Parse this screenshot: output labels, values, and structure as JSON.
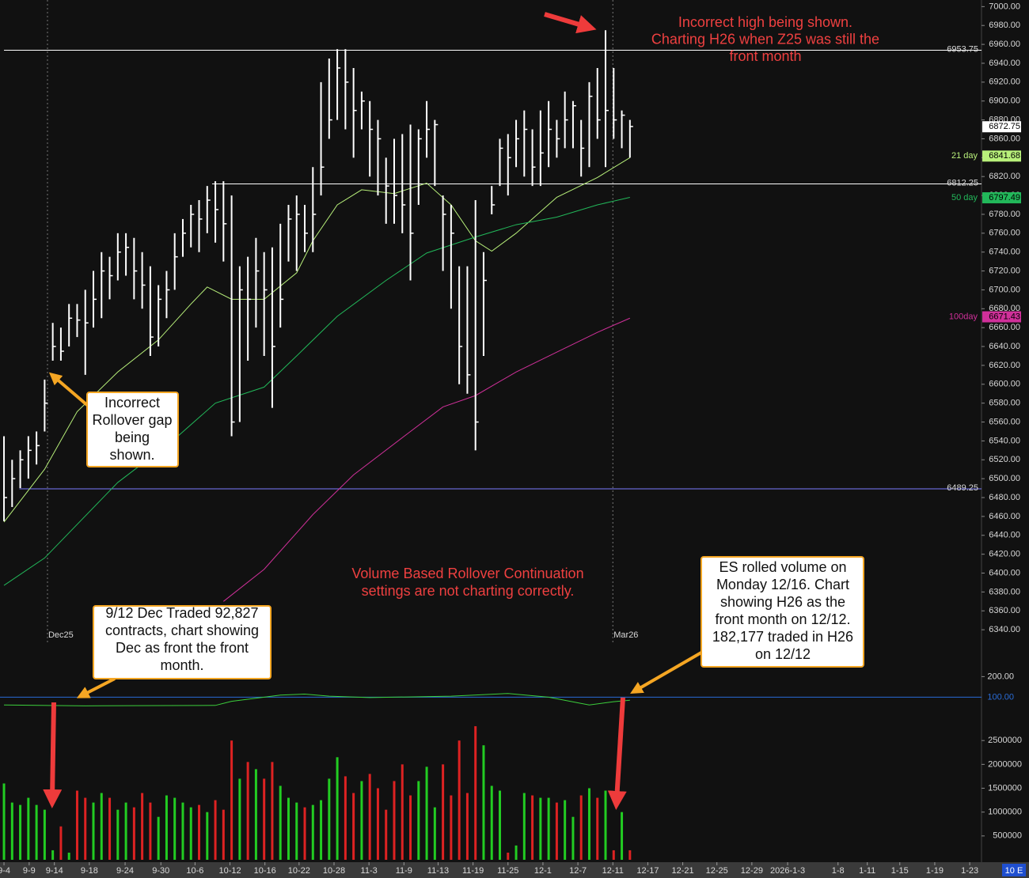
{
  "chart_data": {
    "type": "ohlc",
    "bar_color": "#ffffff",
    "high": [
      6545,
      6520,
      6530,
      6545,
      6550,
      6605,
      6665,
      6660,
      6685,
      6685,
      6700,
      6720,
      6740,
      6735,
      6760,
      6760,
      6755,
      6740,
      6725,
      6705,
      6720,
      6760,
      6775,
      6790,
      6795,
      6810,
      6815,
      6815,
      6800,
      6725,
      6735,
      6755,
      6740,
      6745,
      6770,
      6790,
      6800,
      6790,
      6830,
      6920,
      6945,
      6955,
      6955,
      6935,
      6910,
      6900,
      6880,
      6840,
      6860,
      6865,
      6875,
      6870,
      6900,
      6880,
      6800,
      6790,
      6725,
      6725,
      6795,
      6740,
      6810,
      6860,
      6865,
      6880,
      6890,
      6870,
      6890,
      6900,
      6880,
      6910,
      6900,
      6880,
      6920,
      6935,
      6975,
      6935,
      6890,
      6880
    ],
    "low": [
      6455,
      6470,
      6490,
      6500,
      6515,
      6550,
      6625,
      6625,
      6640,
      6650,
      6610,
      6660,
      6670,
      6690,
      6710,
      6715,
      6690,
      6680,
      6630,
      6640,
      6670,
      6700,
      6735,
      6745,
      6740,
      6760,
      6750,
      6730,
      6545,
      6560,
      6625,
      6660,
      6630,
      6575,
      6660,
      6730,
      6720,
      6740,
      6740,
      6800,
      6860,
      6880,
      6870,
      6840,
      6870,
      6820,
      6800,
      6770,
      6770,
      6760,
      6710,
      6790,
      6840,
      6810,
      6720,
      6680,
      6600,
      6590,
      6530,
      6630,
      6780,
      6810,
      6800,
      6830,
      6820,
      6810,
      6810,
      6830,
      6840,
      6850,
      6850,
      6820,
      6830,
      6860,
      6830,
      6860,
      6850,
      6840
    ],
    "close": [
      6480,
      6500,
      6520,
      6530,
      6535,
      6580,
      6640,
      6635,
      6670,
      6668,
      6665,
      6690,
      6720,
      6715,
      6740,
      6745,
      6720,
      6705,
      6650,
      6690,
      6700,
      6735,
      6760,
      6780,
      6775,
      6795,
      6785,
      6770,
      6560,
      6700,
      6690,
      6720,
      6700,
      6640,
      6690,
      6775,
      6780,
      6760,
      6780,
      6830,
      6880,
      6935,
      6920,
      6890,
      6900,
      6870,
      6860,
      6810,
      6800,
      6790,
      6760,
      6860,
      6870,
      6875,
      6780,
      6760,
      6640,
      6610,
      6560,
      6710,
      6790,
      6850,
      6840,
      6860,
      6870,
      6830,
      6845,
      6870,
      6860,
      6880,
      6895,
      6850,
      6905,
      6880,
      6890,
      6880,
      6885,
      6873
    ],
    "xlim": [
      -0.49,
      120.25
    ],
    "xticks": [
      {
        "value": 0,
        "label": "9-4"
      },
      {
        "value": 3.1,
        "label": "9-9"
      },
      {
        "value": 6.2,
        "label": "9-14"
      },
      {
        "value": 10.5,
        "label": "9-18"
      },
      {
        "value": 14.9,
        "label": "9-24"
      },
      {
        "value": 19.3,
        "label": "9-30"
      },
      {
        "value": 23.5,
        "label": "10-6"
      },
      {
        "value": 27.8,
        "label": "10-12"
      },
      {
        "value": 32.1,
        "label": "10-16"
      },
      {
        "value": 36.3,
        "label": "10-22"
      },
      {
        "value": 40.6,
        "label": "10-28"
      },
      {
        "value": 44.9,
        "label": "11-3"
      },
      {
        "value": 49.2,
        "label": "11-9"
      },
      {
        "value": 53.4,
        "label": "11-13"
      },
      {
        "value": 57.7,
        "label": "11-19"
      },
      {
        "value": 62,
        "label": "11-25"
      },
      {
        "value": 66.3,
        "label": "12-1"
      },
      {
        "value": 70.6,
        "label": "12-7"
      },
      {
        "value": 74.9,
        "label": "12-11"
      },
      {
        "value": 79.2,
        "label": "12-17"
      },
      {
        "value": 83.5,
        "label": "12-21"
      },
      {
        "value": 87.7,
        "label": "12-25"
      },
      {
        "value": 92,
        "label": "12-29"
      },
      {
        "value": 96.4,
        "label": "2026-1-3"
      },
      {
        "value": 102.6,
        "label": "1-8"
      },
      {
        "value": 106.2,
        "label": "1-11"
      },
      {
        "value": 110.2,
        "label": "1-15"
      },
      {
        "value": 114.5,
        "label": "1-19"
      },
      {
        "value": 118.8,
        "label": "1-23"
      }
    ],
    "ylim": [
      6320,
      7007
    ],
    "yticks": [
      {
        "value": 7000,
        "label": "7000.00"
      },
      {
        "value": 6980,
        "label": "6980.00"
      },
      {
        "value": 6960,
        "label": "6960.00"
      },
      {
        "value": 6940,
        "label": "6940.00"
      },
      {
        "value": 6920,
        "label": "6920.00"
      },
      {
        "value": 6900,
        "label": "6900.00"
      },
      {
        "value": 6880,
        "label": "6880.00"
      },
      {
        "value": 6860,
        "label": "6860.00"
      },
      {
        "value": 6840,
        "label": "6840.00"
      },
      {
        "value": 6820,
        "label": "6820.00"
      },
      {
        "value": 6800,
        "label": "6800.00"
      },
      {
        "value": 6780,
        "label": "6780.00"
      },
      {
        "value": 6760,
        "label": "6760.00"
      },
      {
        "value": 6740,
        "label": "6740.00"
      },
      {
        "value": 6720,
        "label": "6720.00"
      },
      {
        "value": 6700,
        "label": "6700.00"
      },
      {
        "value": 6680,
        "label": "6680.00"
      },
      {
        "value": 6660,
        "label": "6660.00"
      },
      {
        "value": 6640,
        "label": "6640.00"
      },
      {
        "value": 6620,
        "label": "6620.00"
      },
      {
        "value": 6600,
        "label": "6600.00"
      },
      {
        "value": 6580,
        "label": "6580.00"
      },
      {
        "value": 6560,
        "label": "6560.00"
      },
      {
        "value": 6540,
        "label": "6540.00"
      },
      {
        "value": 6520,
        "label": "6520.00"
      },
      {
        "value": 6500,
        "label": "6500.00"
      },
      {
        "value": 6480,
        "label": "6480.00"
      },
      {
        "value": 6460,
        "label": "6460.00"
      },
      {
        "value": 6440,
        "label": "6440.00"
      },
      {
        "value": 6420,
        "label": "6420.00"
      },
      {
        "value": 6400,
        "label": "6400.00"
      },
      {
        "value": 6380,
        "label": "6380.00"
      },
      {
        "value": 6360,
        "label": "6360.00"
      },
      {
        "value": 6340,
        "label": "6340.00"
      }
    ],
    "last_price": 6872.75,
    "moving_averages": [
      {
        "name": "21 day",
        "color": "#b8f07a",
        "last": 6841.68,
        "x": [
          0,
          5,
          9,
          14,
          19,
          23,
          25,
          28,
          32,
          36,
          38,
          41,
          44,
          48,
          52,
          55,
          58,
          60,
          63,
          68,
          73,
          77
        ],
        "values": [
          6454,
          6510,
          6571,
          6613,
          6647,
          6685,
          6703,
          6690,
          6690,
          6718,
          6752,
          6790,
          6806,
          6802,
          6813,
          6790,
          6752,
          6741,
          6760,
          6798,
          6819,
          6840
        ]
      },
      {
        "name": "50 day",
        "color": "#22b85a",
        "last": 6797.49,
        "x": [
          0,
          5,
          14,
          21,
          26,
          32,
          36,
          41,
          47,
          52,
          58,
          63,
          68,
          73,
          77
        ],
        "values": [
          6387,
          6416,
          6496,
          6542,
          6580,
          6597,
          6630,
          6672,
          6710,
          6739,
          6756,
          6769,
          6777,
          6790,
          6798
        ]
      },
      {
        "name": "100day",
        "color": "#d0309a",
        "last": 6671.43,
        "x": [
          27,
          32,
          38,
          43,
          50,
          54,
          58,
          63,
          68,
          73,
          77
        ],
        "values": [
          6370,
          6404,
          6462,
          6504,
          6550,
          6576,
          6588,
          6613,
          6634,
          6655,
          6670
        ]
      }
    ],
    "levels": [
      {
        "value": 6953.75,
        "from": 0,
        "color": "#ffffff"
      },
      {
        "value": 6812.25,
        "from": 25.6,
        "color": "#ffffff"
      },
      {
        "value": 6489.25,
        "from": 1.9,
        "color": "#7b7bff"
      }
    ],
    "contract_marks": [
      {
        "x": 5.35,
        "label": "Dec25"
      },
      {
        "x": 74.9,
        "label": "Mar26"
      }
    ],
    "indicator": {
      "ylim": [
        40,
        240
      ],
      "yticks": [
        {
          "value": 200,
          "label": "200.00"
        },
        {
          "value": 100,
          "label": "100.00"
        }
      ],
      "color": "#3ccf3c",
      "ref_color": "#2a6cd6",
      "x": [
        0,
        10,
        26,
        28,
        34,
        37,
        40,
        45,
        55,
        62,
        67,
        72,
        75,
        77
      ],
      "values": [
        62,
        58,
        60,
        80,
        110,
        115,
        105,
        98,
        105,
        118,
        100,
        62,
        78,
        85
      ]
    },
    "volume": {
      "ylim": [
        0,
        3100000
      ],
      "yticks": [
        2500000,
        2000000,
        1500000,
        1000000,
        500000
      ],
      "up_color": "#22cc22",
      "down_color": "#dd2222",
      "values": [
        1600000,
        1200000,
        1150000,
        1300000,
        1150000,
        1050000,
        200000,
        700000,
        150000,
        1450000,
        1300000,
        1200000,
        1400000,
        1300000,
        1050000,
        1200000,
        1100000,
        1400000,
        1200000,
        900000,
        1350000,
        1300000,
        1200000,
        1100000,
        1150000,
        1000000,
        1250000,
        1050000,
        2500000,
        1700000,
        2050000,
        1900000,
        1700000,
        2050000,
        1550000,
        1300000,
        1200000,
        1100000,
        1150000,
        1250000,
        1700000,
        2150000,
        1750000,
        1400000,
        1650000,
        1800000,
        1500000,
        1050000,
        1650000,
        2000000,
        1350000,
        1650000,
        1950000,
        1100000,
        2000000,
        1350000,
        2500000,
        1400000,
        2800000,
        2400000,
        1550000,
        1450000,
        150000,
        300000,
        1400000,
        1350000,
        1300000,
        1300000,
        1200000,
        1250000,
        900000,
        1350000,
        1500000,
        1300000,
        1450000,
        200000,
        1000000,
        200000
      ]
    },
    "annotations": [
      {
        "kind": "note",
        "lines": [
          "Incorrect high being shown.",
          "Charting H26 when Z25 was still the",
          "front month"
        ]
      },
      {
        "kind": "callout",
        "lines": [
          "Incorrect",
          "Rollover gap",
          "being",
          "shown."
        ]
      },
      {
        "kind": "note",
        "lines": [
          "Volume Based Rollover Continuation",
          "settings are not charting correctly."
        ]
      },
      {
        "kind": "callout",
        "lines": [
          "9/12 Dec Traded 92,827",
          "contracts, chart showing",
          "Dec as front the front",
          "month."
        ]
      },
      {
        "kind": "callout",
        "lines": [
          "ES rolled volume on",
          "Monday 12/16. Chart",
          "showing H26 as the",
          "front month on 12/12.",
          "182,177 traded in H26",
          "on 12/12"
        ]
      }
    ],
    "corner_label": "10 E"
  }
}
